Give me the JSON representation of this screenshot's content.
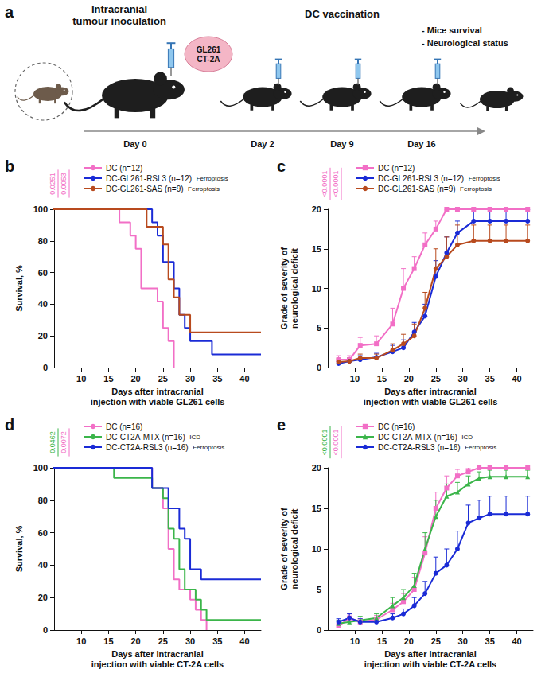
{
  "diagram": {
    "panel": "a",
    "inoculation": "Intracranial tumour inoculation",
    "cell_lines": [
      "GL261",
      "CT-2A"
    ],
    "vaccination": "DC vaccination",
    "days": [
      "Day 0",
      "Day 2",
      "Day 9",
      "Day 16"
    ],
    "readouts": [
      "- Mice survival",
      "- Neurological status"
    ]
  },
  "chart_data": [
    {
      "panel": "b",
      "type": "line",
      "line_style": "step",
      "grid": false,
      "legend": "top",
      "x_label": "Days after intracranial injection with viable GL261 cells",
      "y_label": "Survival, %",
      "xlim": [
        5,
        43
      ],
      "xticks": [
        10,
        15,
        20,
        25,
        30,
        35,
        40
      ],
      "ylim": [
        0,
        100
      ],
      "yticks": [
        0,
        20,
        40,
        60,
        80,
        100
      ],
      "annotations": [
        {
          "text": "0.0251",
          "color": "#f26fc6"
        },
        {
          "text": "0.0053",
          "color": "#f26fc6"
        }
      ],
      "series": [
        {
          "name": "DC (n=12)",
          "color": "#f26fc6",
          "x": [
            0,
            17,
            19,
            20,
            21,
            24,
            25,
            26,
            27
          ],
          "values": [
            100,
            91.7,
            83.3,
            75,
            50,
            41.7,
            25,
            16.7,
            0
          ]
        },
        {
          "name": "DC-GL261-RSL3 (n=12)",
          "note": "Ferroptosis",
          "color": "#1a2bd6",
          "x": [
            0,
            23,
            24,
            25,
            27,
            28,
            29,
            30,
            34,
            43
          ],
          "values": [
            100,
            91.7,
            83.3,
            66.7,
            50,
            33.3,
            25,
            16.7,
            8.3,
            8.3
          ]
        },
        {
          "name": "DC-GL261-SAS (n=9)",
          "note": "Ferroptosis",
          "color": "#b84a1e",
          "x": [
            0,
            22,
            25,
            26,
            27,
            28,
            30,
            43
          ],
          "values": [
            100,
            88.9,
            77.8,
            55.6,
            44.4,
            33.3,
            22.2,
            22.2
          ]
        }
      ]
    },
    {
      "panel": "c",
      "type": "line",
      "grid": false,
      "legend": "top",
      "x_label": "Days after intracranial injection with viable GL261 cells",
      "y_label": "Grade of severity of neurological deficit",
      "xlim": [
        5,
        43
      ],
      "xticks": [
        10,
        15,
        20,
        25,
        30,
        35,
        40
      ],
      "ylim": [
        0,
        20
      ],
      "yticks": [
        0,
        5,
        10,
        15,
        20
      ],
      "annotations": [
        {
          "text": "<0.0001",
          "color": "#f26fc6"
        },
        {
          "text": "<0.0001",
          "color": "#f26fc6"
        }
      ],
      "series": [
        {
          "name": "DC (n=12)",
          "color": "#f26fc6",
          "marker": "square",
          "x": [
            7,
            9,
            11,
            14,
            17,
            19,
            21,
            23,
            25,
            27,
            29,
            32,
            35,
            38,
            42
          ],
          "values": [
            1,
            1,
            2.8,
            3,
            5.5,
            10,
            12.5,
            15.5,
            17.5,
            20,
            20,
            20,
            20,
            20,
            20
          ],
          "errors": [
            0.5,
            0.5,
            1,
            1,
            2,
            2.5,
            1.5,
            1.5,
            1,
            0,
            0,
            0,
            0,
            0,
            0
          ]
        },
        {
          "name": "DC-GL261-RSL3 (n=12)",
          "note": "Ferroptosis",
          "color": "#1a2bd6",
          "marker": "circle",
          "x": [
            7,
            9,
            11,
            14,
            17,
            19,
            21,
            23,
            25,
            27,
            29,
            32,
            35,
            38,
            42
          ],
          "values": [
            0.5,
            0.8,
            1,
            1.3,
            2,
            2.5,
            4.5,
            6.5,
            11.5,
            14.5,
            17,
            18.5,
            18.5,
            18.5,
            18.5
          ],
          "errors": [
            0.3,
            0.4,
            0.5,
            0.5,
            0.8,
            1,
            1.2,
            1.5,
            2,
            2,
            1.5,
            1.5,
            1.5,
            1.5,
            1.5
          ]
        },
        {
          "name": "DC-GL261-SAS (n=9)",
          "note": "Ferroptosis",
          "color": "#b84a1e",
          "marker": "circle",
          "x": [
            7,
            9,
            11,
            14,
            17,
            19,
            21,
            23,
            25,
            27,
            29,
            32,
            35,
            38,
            42
          ],
          "values": [
            0.7,
            0.8,
            1.2,
            1.2,
            2.2,
            3,
            4,
            7.5,
            12.5,
            14,
            15.5,
            16,
            16,
            16,
            16
          ],
          "errors": [
            0.4,
            0.4,
            0.5,
            0.5,
            0.8,
            1.2,
            1.5,
            2,
            2.5,
            2.5,
            2.5,
            2,
            2,
            2,
            2
          ]
        }
      ]
    },
    {
      "panel": "d",
      "type": "line",
      "line_style": "step",
      "grid": false,
      "legend": "top",
      "x_label": "Days after intracranial injection with viable CT-2A cells",
      "y_label": "Survival, %",
      "xlim": [
        5,
        43
      ],
      "xticks": [
        10,
        15,
        20,
        25,
        30,
        35,
        40
      ],
      "ylim": [
        0,
        100
      ],
      "yticks": [
        0,
        20,
        40,
        60,
        80,
        100
      ],
      "annotations": [
        {
          "text": "0.0462",
          "color": "#3bb54a"
        },
        {
          "text": "0.0072",
          "color": "#f26fc6"
        }
      ],
      "series": [
        {
          "name": "DC (n=16)",
          "color": "#f26fc6",
          "x": [
            0,
            23,
            25,
            26,
            27,
            28,
            30,
            31,
            32,
            33
          ],
          "values": [
            100,
            87.5,
            75,
            50,
            31.25,
            25,
            18.75,
            12.5,
            6.25,
            0
          ]
        },
        {
          "name": "DC-CT2A-MTX (n=16)",
          "note": "ICD",
          "color": "#3bb54a",
          "x": [
            0,
            16,
            23,
            25,
            26,
            27,
            28,
            29,
            31,
            32,
            33,
            43
          ],
          "values": [
            100,
            93.75,
            87.5,
            81.25,
            62.5,
            56.25,
            37.5,
            25,
            18.75,
            12.5,
            6.25,
            6.25
          ]
        },
        {
          "name": "DC-CT2A-RSL3 (n=16)",
          "note": "Ferroptosis",
          "color": "#1a2bd6",
          "x": [
            0,
            23,
            26,
            28,
            29,
            30,
            32,
            43
          ],
          "values": [
            100,
            87.5,
            75,
            62.5,
            56.25,
            37.5,
            31.25,
            31.25
          ]
        }
      ]
    },
    {
      "panel": "e",
      "type": "line",
      "grid": false,
      "legend": "top",
      "x_label": "Days after intracranial injection with viable CT-2A cells",
      "y_label": "Grade of severity of neurological deficit",
      "xlim": [
        5,
        43
      ],
      "xticks": [
        10,
        15,
        20,
        25,
        30,
        35,
        40
      ],
      "ylim": [
        0,
        20
      ],
      "yticks": [
        0,
        5,
        10,
        15,
        20
      ],
      "annotations": [
        {
          "text": "<0.0001",
          "color": "#3bb54a"
        },
        {
          "text": "<0.0001",
          "color": "#f26fc6"
        }
      ],
      "series": [
        {
          "name": "DC (n=16)",
          "color": "#f26fc6",
          "marker": "square",
          "x": [
            7,
            9,
            11,
            14,
            17,
            19,
            21,
            23,
            25,
            27,
            29,
            31,
            33,
            35,
            38,
            42
          ],
          "values": [
            0.5,
            1.5,
            1,
            1.3,
            2.5,
            3.5,
            5,
            9.5,
            15,
            17.5,
            19,
            19.5,
            20,
            20,
            20,
            20
          ],
          "errors": [
            0.3,
            0.5,
            0.4,
            0.5,
            0.8,
            1,
            1.5,
            2,
            2,
            1.5,
            0.8,
            0.5,
            0,
            0,
            0,
            0
          ]
        },
        {
          "name": "DC-CT2A-MTX (n=16)",
          "note": "ICD",
          "color": "#3bb54a",
          "marker": "triangle",
          "x": [
            7,
            9,
            11,
            14,
            17,
            19,
            21,
            23,
            25,
            27,
            29,
            31,
            33,
            35,
            38,
            42
          ],
          "values": [
            0.8,
            1,
            1.2,
            1.5,
            3,
            4,
            5.5,
            10,
            14,
            16.5,
            17,
            18,
            18.7,
            18.9,
            18.9,
            18.9
          ],
          "errors": [
            0.4,
            0.4,
            0.5,
            0.5,
            1,
            1,
            1.5,
            2,
            2,
            1.5,
            1.2,
            1,
            0.8,
            0.8,
            0.8,
            0.8
          ]
        },
        {
          "name": "DC-CT2A-RSL3 (n=16)",
          "note": "Ferroptosis",
          "color": "#1a2bd6",
          "marker": "circle",
          "x": [
            7,
            9,
            11,
            14,
            17,
            19,
            21,
            23,
            25,
            27,
            29,
            31,
            33,
            35,
            38,
            42
          ],
          "values": [
            1,
            1.5,
            1,
            1,
            1.5,
            2,
            3,
            4.5,
            7,
            8,
            10,
            13.2,
            13.8,
            14.3,
            14.3,
            14.3
          ],
          "errors": [
            0.4,
            0.5,
            0.4,
            0.4,
            0.5,
            0.6,
            1,
            1.5,
            2,
            2,
            2.2,
            2.2,
            2.2,
            2.2,
            2.2,
            2.2
          ]
        }
      ]
    }
  ]
}
